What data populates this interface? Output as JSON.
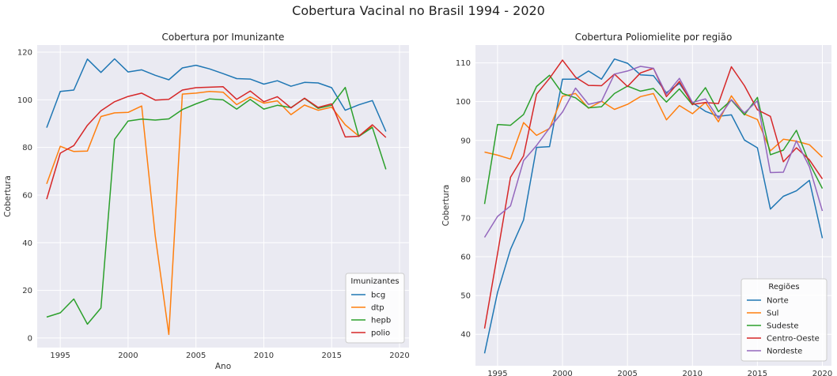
{
  "figure": {
    "suptitle": "Cobertura Vacinal no Brasil 1994 - 2020"
  },
  "chart_data": [
    {
      "type": "line",
      "title": "Cobertura por Imunizante",
      "xlabel": "Ano",
      "ylabel": "Cobertura",
      "xlim": [
        1993.3,
        2020.7
      ],
      "ylim": [
        -4,
        123
      ],
      "xticks": [
        1995,
        2000,
        2005,
        2010,
        2015,
        2020
      ],
      "yticks": [
        0,
        20,
        40,
        60,
        80,
        100,
        120
      ],
      "grid": true,
      "legend": {
        "title": "Imunizantes",
        "placement": "lower right"
      },
      "x": [
        1994,
        1995,
        1996,
        1997,
        1998,
        1999,
        2000,
        2001,
        2002,
        2003,
        2004,
        2005,
        2006,
        2007,
        2008,
        2009,
        2010,
        2011,
        2012,
        2013,
        2014,
        2015,
        2016,
        2017,
        2018,
        2019
      ],
      "series": [
        {
          "name": "bcg",
          "color": "#1f77b4",
          "values": [
            88.3,
            103.5,
            104.1,
            117.1,
            111.5,
            117.2,
            111.7,
            112.6,
            110.3,
            108.4,
            113.4,
            114.5,
            113.0,
            111.0,
            108.9,
            108.7,
            106.6,
            108.0,
            105.7,
            107.3,
            107.1,
            105.1,
            95.6,
            97.9,
            99.7,
            86.7
          ]
        },
        {
          "name": "dtp",
          "color": "#ff7f0e",
          "values": [
            64.7,
            80.5,
            78.3,
            78.5,
            93.0,
            94.5,
            94.7,
            97.4,
            43.0,
            1.5,
            102.4,
            102.8,
            103.5,
            103.2,
            98.0,
            101.2,
            98.6,
            99.6,
            93.8,
            97.8,
            95.6,
            96.9,
            89.5,
            84.8,
            88.8,
            null
          ]
        },
        {
          "name": "hepb",
          "color": "#2ca02c",
          "values": [
            8.8,
            10.6,
            16.4,
            5.8,
            12.6,
            83.4,
            91.1,
            91.9,
            91.5,
            92.0,
            95.9,
            98.3,
            100.4,
            100.0,
            96.1,
            100.2,
            96.1,
            97.7,
            96.7,
            100.6,
            96.4,
            97.7,
            105.2,
            84.6,
            88.4,
            70.8
          ]
        },
        {
          "name": "polio",
          "color": "#d62728",
          "values": [
            58.3,
            77.6,
            80.8,
            89.3,
            95.4,
            99.2,
            101.4,
            102.8,
            99.9,
            100.2,
            104.1,
            105.1,
            105.3,
            105.5,
            100.2,
            103.7,
            99.2,
            101.3,
            96.6,
            100.7,
            96.8,
            98.3,
            84.4,
            84.7,
            89.5,
            84.2
          ]
        }
      ]
    },
    {
      "type": "line",
      "title": "Cobertura Poliomielite por região",
      "xlabel": "Ano",
      "ylabel": "Cobertura",
      "xlim": [
        1993.3,
        2020.7
      ],
      "ylim": [
        31.9,
        114.6
      ],
      "xticks": [
        1995,
        2000,
        2005,
        2010,
        2015,
        2020
      ],
      "yticks": [
        40,
        50,
        60,
        70,
        80,
        90,
        100,
        110
      ],
      "grid": true,
      "legend": {
        "title": "Regiões",
        "placement": "lower right"
      },
      "x": [
        1994,
        1995,
        1996,
        1997,
        1998,
        1999,
        2000,
        2001,
        2002,
        2003,
        2004,
        2005,
        2006,
        2007,
        2008,
        2009,
        2010,
        2011,
        2012,
        2013,
        2014,
        2015,
        2016,
        2017,
        2018,
        2019,
        2020
      ],
      "series": [
        {
          "name": "Norte",
          "color": "#1f77b4",
          "values": [
            35.1,
            50.8,
            61.9,
            69.5,
            88.2,
            88.4,
            105.8,
            105.8,
            107.9,
            105.8,
            111.0,
            109.9,
            106.9,
            106.7,
            102.3,
            104.7,
            99.7,
            97.5,
            96.2,
            96.6,
            90.1,
            88.1,
            72.3,
            75.6,
            77.0,
            79.7,
            64.8
          ]
        },
        {
          "name": "Sul",
          "color": "#ff7f0e",
          "values": [
            87.0,
            86.2,
            85.2,
            94.6,
            91.3,
            93.1,
            101.4,
            102.1,
            98.3,
            100.1,
            98.0,
            99.3,
            101.3,
            102.1,
            95.3,
            99.0,
            96.9,
            99.8,
            94.8,
            101.5,
            96.8,
            95.4,
            87.3,
            90.3,
            89.8,
            88.9,
            85.7
          ]
        },
        {
          "name": "Sudeste",
          "color": "#2ca02c",
          "values": [
            73.6,
            94.1,
            93.9,
            96.7,
            103.9,
            106.8,
            102.1,
            101.0,
            98.4,
            98.7,
            102.1,
            104.0,
            102.7,
            103.4,
            99.9,
            103.3,
            99.2,
            103.6,
            97.4,
            100.4,
            96.6,
            101.1,
            86.3,
            87.5,
            92.6,
            84.1,
            77.6
          ]
        },
        {
          "name": "Centro-Oeste",
          "color": "#d62728",
          "values": [
            41.5,
            60.8,
            80.5,
            86.0,
            101.9,
            106.0,
            110.7,
            106.3,
            104.2,
            104.1,
            107.1,
            103.9,
            107.4,
            108.6,
            101.3,
            105.2,
            99.3,
            99.8,
            99.5,
            109.0,
            104.1,
            97.9,
            96.2,
            84.5,
            88.1,
            85.0,
            80.1
          ]
        },
        {
          "name": "Nordeste",
          "color": "#9467bd",
          "values": [
            65.0,
            70.4,
            73.1,
            84.8,
            88.7,
            93.2,
            97.3,
            103.5,
            99.3,
            100.1,
            107.1,
            107.9,
            109.1,
            108.6,
            101.9,
            106.0,
            99.8,
            100.7,
            95.7,
            100.5,
            97.1,
            100.2,
            81.7,
            81.8,
            89.9,
            83.2,
            71.8
          ]
        }
      ]
    }
  ]
}
